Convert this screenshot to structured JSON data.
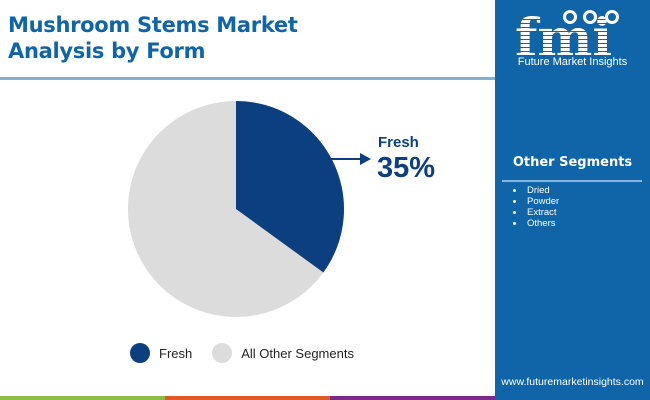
{
  "header": {
    "title_line1": "Mushroom Stems Market",
    "title_line2": "Analysis by Form"
  },
  "colors": {
    "title": "#0f65a8",
    "fresh": "#0b3f7f",
    "other": "#dcdcdc",
    "panel": "#0f65a8",
    "stripe_green": "#8bbd45",
    "stripe_orange": "#e05a26",
    "stripe_purple": "#7a2a8a"
  },
  "callout": {
    "label": "Fresh",
    "value": "35%"
  },
  "legend": {
    "items": [
      {
        "label": "Fresh",
        "color": "#0b3f7f"
      },
      {
        "label": "All Other Segments",
        "color": "#dcdcdc"
      }
    ]
  },
  "side_panel": {
    "logo_text": "fmi",
    "logo_tagline": "Future Market Insights",
    "segments_title": "Other Segments",
    "segments": [
      "Dried",
      "Powder",
      "Extract",
      "Others"
    ],
    "url": "www.futuremarketinsights.com"
  },
  "chart_data": {
    "type": "pie",
    "title": "Mushroom Stems Market Analysis by Form",
    "categories": [
      "Fresh",
      "All Other Segments"
    ],
    "values": [
      35,
      65
    ],
    "colors": [
      "#0b3f7f",
      "#dcdcdc"
    ],
    "annotations": [
      {
        "label": "Fresh",
        "value": "35%"
      }
    ],
    "legend_position": "bottom",
    "start_angle": "12 o'clock, clockwise"
  }
}
